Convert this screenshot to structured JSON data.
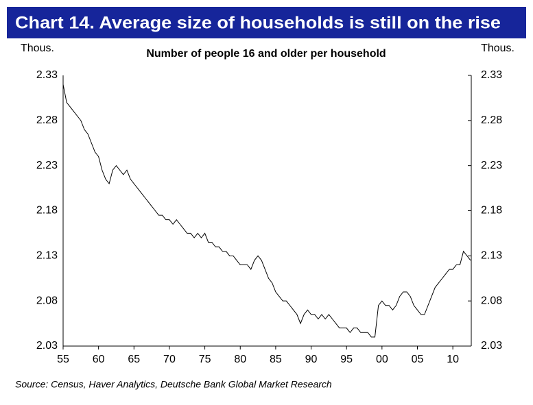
{
  "chart_data": {
    "type": "line",
    "title": "Chart 14. Average size of households is still on the rise",
    "subtitle": "Number of people 16 and older per household",
    "ylabel": "Thous.",
    "y2label": "Thous.",
    "source": "Source: Census, Haver Analytics, Deutsche Bank Global Market Research",
    "color": "#000000",
    "x": [
      1955,
      1955.5,
      1956,
      1956.5,
      1957,
      1957.5,
      1958,
      1958.5,
      1959,
      1959.5,
      1960,
      1960.5,
      1961,
      1961.5,
      1962,
      1962.5,
      1963,
      1963.5,
      1964,
      1964.5,
      1965,
      1965.5,
      1966,
      1966.5,
      1967,
      1967.5,
      1968,
      1968.5,
      1969,
      1969.5,
      1970,
      1970.5,
      1971,
      1971.5,
      1972,
      1972.5,
      1973,
      1973.5,
      1974,
      1974.5,
      1975,
      1975.5,
      1976,
      1976.5,
      1977,
      1977.5,
      1978,
      1978.5,
      1979,
      1979.5,
      1980,
      1980.5,
      1981,
      1981.5,
      1982,
      1982.5,
      1983,
      1983.5,
      1984,
      1984.5,
      1985,
      1985.5,
      1986,
      1986.5,
      1987,
      1987.5,
      1988,
      1988.5,
      1989,
      1989.5,
      1990,
      1990.5,
      1991,
      1991.5,
      1992,
      1992.5,
      1993,
      1993.5,
      1994,
      1994.5,
      1995,
      1995.5,
      1996,
      1996.5,
      1997,
      1997.5,
      1998,
      1998.5,
      1999,
      1999.5,
      2000,
      2000.5,
      2001,
      2001.5,
      2002,
      2002.5,
      2003,
      2003.5,
      2004,
      2004.5,
      2005,
      2005.5,
      2006,
      2006.5,
      2007,
      2007.5,
      2008,
      2008.5,
      2009,
      2009.5,
      2010,
      2010.5,
      2011,
      2011.5,
      2012,
      2012.5
    ],
    "values": [
      2.32,
      2.3,
      2.295,
      2.29,
      2.285,
      2.28,
      2.27,
      2.265,
      2.255,
      2.245,
      2.24,
      2.225,
      2.215,
      2.21,
      2.225,
      2.23,
      2.225,
      2.22,
      2.225,
      2.215,
      2.21,
      2.205,
      2.2,
      2.195,
      2.19,
      2.185,
      2.18,
      2.175,
      2.175,
      2.17,
      2.17,
      2.165,
      2.17,
      2.165,
      2.16,
      2.155,
      2.155,
      2.15,
      2.155,
      2.15,
      2.155,
      2.145,
      2.145,
      2.14,
      2.14,
      2.135,
      2.135,
      2.13,
      2.13,
      2.125,
      2.12,
      2.12,
      2.12,
      2.115,
      2.125,
      2.13,
      2.125,
      2.115,
      2.105,
      2.1,
      2.09,
      2.085,
      2.08,
      2.08,
      2.075,
      2.07,
      2.065,
      2.055,
      2.065,
      2.07,
      2.065,
      2.065,
      2.06,
      2.065,
      2.06,
      2.065,
      2.06,
      2.055,
      2.05,
      2.05,
      2.05,
      2.045,
      2.05,
      2.05,
      2.045,
      2.045,
      2.045,
      2.04,
      2.04,
      2.075,
      2.08,
      2.075,
      2.075,
      2.07,
      2.075,
      2.085,
      2.09,
      2.09,
      2.085,
      2.075,
      2.07,
      2.065,
      2.065,
      2.075,
      2.085,
      2.095,
      2.1,
      2.105,
      2.11,
      2.115,
      2.115,
      2.12,
      2.12,
      2.135,
      2.13,
      2.125
    ],
    "xlim": [
      1955,
      2012.6
    ],
    "xticks": [
      {
        "value": 1955,
        "label": "55"
      },
      {
        "value": 1960,
        "label": "60"
      },
      {
        "value": 1965,
        "label": "65"
      },
      {
        "value": 1970,
        "label": "70"
      },
      {
        "value": 1975,
        "label": "75"
      },
      {
        "value": 1980,
        "label": "80"
      },
      {
        "value": 1985,
        "label": "85"
      },
      {
        "value": 1990,
        "label": "90"
      },
      {
        "value": 1995,
        "label": "95"
      },
      {
        "value": 2000,
        "label": "00"
      },
      {
        "value": 2005,
        "label": "05"
      },
      {
        "value": 2010,
        "label": "10"
      }
    ],
    "ylim": [
      2.03,
      2.33
    ],
    "yticks": [
      2.03,
      2.08,
      2.13,
      2.18,
      2.23,
      2.28,
      2.33
    ],
    "y2lim": [
      2.03,
      2.33
    ],
    "y2ticks": [
      2.03,
      2.08,
      2.13,
      2.18,
      2.23,
      2.28,
      2.33
    ],
    "grid": false
  }
}
